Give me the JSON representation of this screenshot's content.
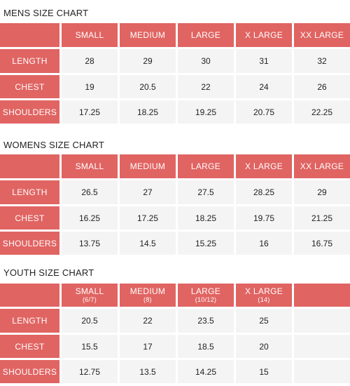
{
  "mens": {
    "title": "MENS SIZE CHART",
    "sizes": [
      "SMALL",
      "MEDIUM",
      "LARGE",
      "X LARGE",
      "XX LARGE"
    ],
    "rows": [
      {
        "label": "LENGTH",
        "values": [
          "28",
          "29",
          "30",
          "31",
          "32"
        ]
      },
      {
        "label": "CHEST",
        "values": [
          "19",
          "20.5",
          "22",
          "24",
          "26"
        ]
      },
      {
        "label": "SHOULDERS",
        "values": [
          "17.25",
          "18.25",
          "19.25",
          "20.75",
          "22.25"
        ]
      }
    ]
  },
  "womens": {
    "title": "WOMENS SIZE CHART",
    "sizes": [
      "SMALL",
      "MEDIUM",
      "LARGE",
      "X LARGE",
      "XX LARGE"
    ],
    "rows": [
      {
        "label": "LENGTH",
        "values": [
          "26.5",
          "27",
          "27.5",
          "28.25",
          "29"
        ]
      },
      {
        "label": "CHEST",
        "values": [
          "16.25",
          "17.25",
          "18.25",
          "19.75",
          "21.25"
        ]
      },
      {
        "label": "SHOULDERS",
        "values": [
          "13.75",
          "14.5",
          "15.25",
          "16",
          "16.75"
        ]
      }
    ]
  },
  "youth": {
    "title": "YOUTH SIZE CHART",
    "sizes": [
      {
        "name": "SMALL",
        "range": "(6/7)"
      },
      {
        "name": "MEDIUM",
        "range": "(8)"
      },
      {
        "name": "LARGE",
        "range": "(10/12)"
      },
      {
        "name": "X LARGE",
        "range": "(14)"
      },
      {
        "name": "",
        "range": ""
      }
    ],
    "rows": [
      {
        "label": "LENGTH",
        "values": [
          "20.5",
          "22",
          "23.5",
          "25",
          ""
        ]
      },
      {
        "label": "CHEST",
        "values": [
          "15.5",
          "17",
          "18.5",
          "20",
          ""
        ]
      },
      {
        "label": "SHOULDERS",
        "values": [
          "12.75",
          "13.5",
          "14.25",
          "15",
          ""
        ]
      }
    ]
  },
  "colors": {
    "header_background": "#e06462",
    "value_background": "#f4f4f4",
    "header_text": "#ffffff"
  }
}
